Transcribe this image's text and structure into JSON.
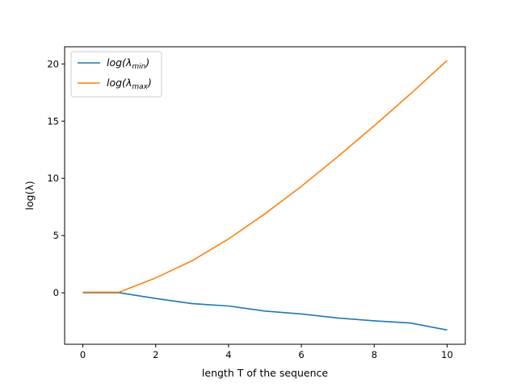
{
  "chart_data": {
    "type": "line",
    "title": "",
    "xlabel": "length T of the sequence",
    "ylabel": "log(λ)",
    "xlim": [
      -0.5,
      10.5
    ],
    "ylim": [
      -4.5,
      21.5
    ],
    "xticks": [
      0,
      2,
      4,
      6,
      8,
      10
    ],
    "yticks": [
      0,
      5,
      10,
      15,
      20
    ],
    "grid": false,
    "legend_position": "top-left",
    "series": [
      {
        "name_base": "log(λ",
        "name_sub": "min",
        "name_end": ")",
        "color": "#1f77b4",
        "x": [
          0,
          1,
          2,
          3,
          4,
          5,
          6,
          7,
          8,
          9,
          10
        ],
        "y": [
          0.0,
          0.0,
          -0.5,
          -0.95,
          -1.15,
          -1.6,
          -1.85,
          -2.2,
          -2.45,
          -2.65,
          -3.25
        ]
      },
      {
        "name_base": "log(λ",
        "name_sub": "max",
        "name_end": ")",
        "color": "#ff7f0e",
        "x": [
          0,
          1,
          2,
          3,
          4,
          5,
          6,
          7,
          8,
          9,
          10
        ],
        "y": [
          0.05,
          0.05,
          1.3,
          2.8,
          4.7,
          6.9,
          9.3,
          11.9,
          14.6,
          17.4,
          20.3
        ]
      }
    ]
  }
}
